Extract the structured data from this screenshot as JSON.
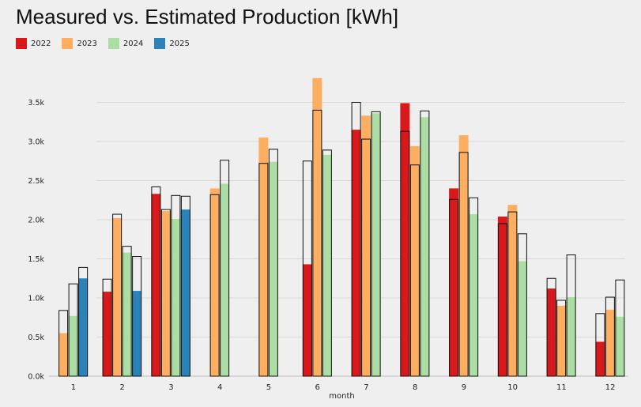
{
  "chart_data": {
    "type": "bar",
    "title": "Measured vs. Estimated Production [kWh]",
    "xlabel": "month",
    "ylabel": "",
    "ylim": [
      0,
      4000
    ],
    "yticks": [
      {
        "value": 0,
        "label": "0.0k"
      },
      {
        "value": 500,
        "label": "0.5k"
      },
      {
        "value": 1000,
        "label": "1.0k"
      },
      {
        "value": 1500,
        "label": "1.5k"
      },
      {
        "value": 2000,
        "label": "2.0k"
      },
      {
        "value": 2500,
        "label": "2.5k"
      },
      {
        "value": 3000,
        "label": "3.0k"
      },
      {
        "value": 3500,
        "label": "3.5k"
      }
    ],
    "grid": true,
    "legend_position": "top-left",
    "categories": [
      "1",
      "2",
      "3",
      "4",
      "5",
      "6",
      "7",
      "8",
      "9",
      "10",
      "11",
      "12"
    ],
    "series": [
      {
        "name": "2022",
        "color": "#d7191c",
        "measured": [
          null,
          1080,
          2330,
          null,
          null,
          1430,
          3150,
          3490,
          2400,
          2040,
          1120,
          440
        ],
        "estimated": [
          null,
          1240,
          2420,
          null,
          null,
          2750,
          3500,
          3130,
          2260,
          1950,
          1250,
          800
        ]
      },
      {
        "name": "2023",
        "color": "#fdae61",
        "measured": [
          550,
          2020,
          2110,
          2400,
          3050,
          3810,
          3330,
          2940,
          3080,
          2190,
          900,
          850
        ],
        "estimated": [
          840,
          2070,
          2130,
          2320,
          2720,
          3400,
          3030,
          2700,
          2860,
          2100,
          970,
          1010
        ]
      },
      {
        "name": "2024",
        "color": "#abdda4",
        "measured": [
          770,
          1580,
          2010,
          2460,
          2740,
          2830,
          3360,
          3310,
          2070,
          1470,
          1010,
          760
        ],
        "estimated": [
          1180,
          1660,
          2310,
          2760,
          2900,
          2890,
          3380,
          3390,
          2280,
          1820,
          1550,
          1230
        ]
      },
      {
        "name": "2025",
        "color": "#2b83ba",
        "measured": [
          1250,
          1090,
          2130,
          null,
          null,
          null,
          null,
          null,
          null,
          null,
          null,
          null
        ],
        "estimated": [
          1390,
          1530,
          2300,
          null,
          null,
          null,
          null,
          null,
          null,
          null,
          null,
          null
        ]
      }
    ]
  }
}
